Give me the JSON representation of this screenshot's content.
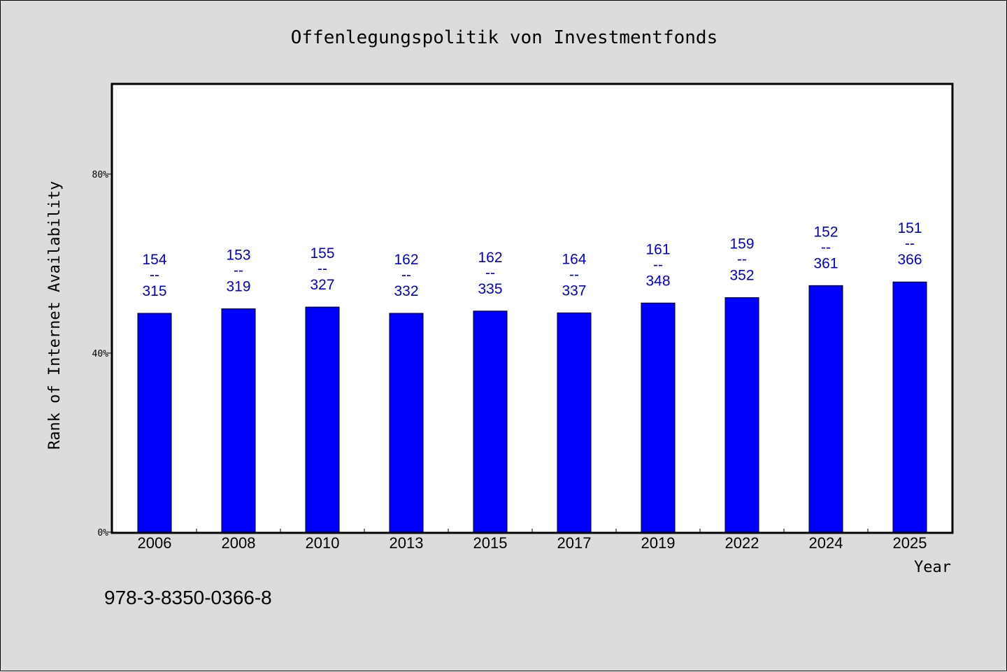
{
  "chart_data": {
    "type": "bar",
    "title": "Offenlegungspolitik von Investmentfonds",
    "xlabel": "Year",
    "ylabel": "Rank of Internet Availability",
    "categories": [
      "2006",
      "2008",
      "2010",
      "2013",
      "2015",
      "2017",
      "2019",
      "2022",
      "2024",
      "2025"
    ],
    "values": [
      48.9,
      49.9,
      50.3,
      48.9,
      49.4,
      49.0,
      51.2,
      52.4,
      55.1,
      55.9
    ],
    "ylim": [
      0,
      100
    ],
    "yticks": [
      0,
      40,
      80
    ],
    "ytick_labels": [
      "0%",
      "40%",
      "80%"
    ],
    "data_labels": [
      {
        "top": "154",
        "sep": "--",
        "bottom": "315"
      },
      {
        "top": "153",
        "sep": "--",
        "bottom": "319"
      },
      {
        "top": "155",
        "sep": "--",
        "bottom": "327"
      },
      {
        "top": "162",
        "sep": "--",
        "bottom": "332"
      },
      {
        "top": "162",
        "sep": "--",
        "bottom": "335"
      },
      {
        "top": "164",
        "sep": "--",
        "bottom": "337"
      },
      {
        "top": "161",
        "sep": "--",
        "bottom": "348"
      },
      {
        "top": "159",
        "sep": "--",
        "bottom": "352"
      },
      {
        "top": "152",
        "sep": "--",
        "bottom": "361"
      },
      {
        "top": "151",
        "sep": "--",
        "bottom": "366"
      }
    ],
    "bar_color": "#0000ff",
    "label_color": "#0000cc",
    "grid": false,
    "legend": "none"
  },
  "footer_text": "978-3-8350-0366-8",
  "colors": {
    "background": "#dcdcdc",
    "plot_background": "#ffffff"
  }
}
